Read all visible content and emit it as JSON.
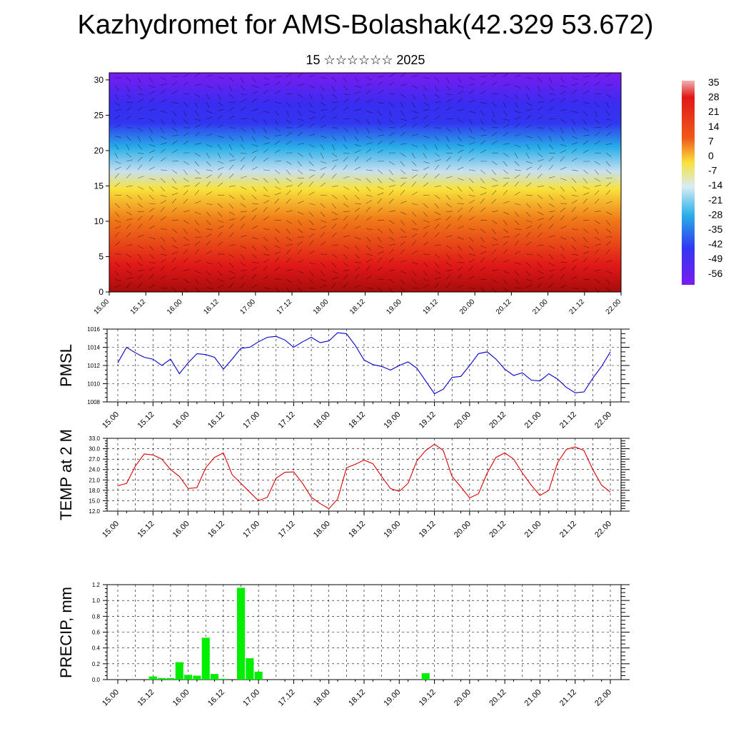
{
  "title": "Kazhydromet for AMS-Bolashak(42.329 53.672)",
  "subtitle": "15 ☆☆☆☆☆☆ 2025",
  "chart_data": [
    {
      "type": "heatmap",
      "panel": "cross-section",
      "xlabel": "",
      "ylabel": "",
      "x_ticks": [
        "15.00",
        "15.12",
        "16.00",
        "16.12",
        "17.00",
        "17.12",
        "18.00",
        "18.12",
        "19.00",
        "19.12",
        "20.00",
        "20.12",
        "21.00",
        "21.12",
        "22.00"
      ],
      "ylim": [
        0,
        31
      ],
      "y_ticks": [
        0,
        5,
        10,
        15,
        20,
        25,
        30
      ],
      "colorbar_labels": [
        "35",
        "28",
        "21",
        "14",
        "7",
        "0",
        "-7",
        "-14",
        "-21",
        "-28",
        "-35",
        "-42",
        "-49",
        "-56"
      ],
      "colorbar_range": [
        -60,
        38
      ],
      "colors": {
        "cold": "#7a1cf0",
        "blue": "#3236f0",
        "cyan": "#28aee8",
        "yellow": "#f8e23c",
        "orange": "#f07a18",
        "red": "#e01818",
        "darkred": "#a80c0c"
      },
      "overlay": "wind barbs"
    },
    {
      "type": "line",
      "ylabel": "PMSL",
      "color": "#0000cc",
      "ylim": [
        1008,
        1016
      ],
      "y_ticks": [
        "1008",
        "1010",
        "1012",
        "1014",
        "1016"
      ],
      "x_ticks": [
        "15.00",
        "15.12",
        "16.00",
        "16.12",
        "17.00",
        "17.12",
        "18.00",
        "18.12",
        "19.00",
        "19.12",
        "20.00",
        "20.12",
        "21.00",
        "21.12",
        "22.00"
      ],
      "x": [
        0,
        3,
        6,
        9,
        12,
        15,
        18,
        21,
        24,
        27,
        30,
        33,
        36,
        39,
        42,
        45,
        48,
        51,
        54,
        57,
        60,
        63,
        66,
        69,
        72,
        75,
        78,
        81,
        84,
        87,
        90,
        93,
        96,
        99,
        102,
        105,
        108,
        111,
        114,
        117,
        120,
        123,
        126,
        129,
        132,
        135,
        138,
        141,
        144,
        147,
        150,
        153,
        156,
        159,
        162,
        165,
        168
      ],
      "values": [
        1012.3,
        1014.0,
        1013.4,
        1012.9,
        1012.7,
        1012.0,
        1012.7,
        1011.1,
        1012.3,
        1013.3,
        1013.2,
        1012.9,
        1011.6,
        1012.7,
        1013.9,
        1014.0,
        1014.6,
        1015.1,
        1015.2,
        1014.8,
        1014.0,
        1014.6,
        1015.1,
        1014.5,
        1014.7,
        1015.6,
        1015.5,
        1014.2,
        1012.6,
        1012.1,
        1011.9,
        1011.5,
        1012.0,
        1012.4,
        1011.7,
        1010.3,
        1008.9,
        1009.4,
        1010.7,
        1010.8,
        1012.0,
        1013.3,
        1013.5,
        1012.7,
        1011.6,
        1010.9,
        1011.2,
        1010.4,
        1010.3,
        1011.1,
        1010.5,
        1009.6,
        1009.0,
        1009.1,
        1010.6,
        1011.9,
        1013.5
      ]
    },
    {
      "type": "line",
      "ylabel": "TEMP at 2 M",
      "color": "#dd0000",
      "ylim": [
        12,
        33
      ],
      "y_ticks": [
        "12.0",
        "15.0",
        "18.0",
        "21.0",
        "24.0",
        "27.0",
        "30.0",
        "33.0"
      ],
      "x_ticks": [
        "15.00",
        "15.12",
        "16.00",
        "16.12",
        "17.00",
        "17.12",
        "18.00",
        "18.12",
        "19.00",
        "19.12",
        "20.00",
        "20.12",
        "21.00",
        "21.12",
        "22.00"
      ],
      "x": [
        0,
        3,
        6,
        9,
        12,
        15,
        18,
        21,
        24,
        27,
        30,
        33,
        36,
        39,
        42,
        45,
        48,
        51,
        54,
        57,
        60,
        63,
        66,
        69,
        72,
        75,
        78,
        81,
        84,
        87,
        90,
        93,
        96,
        99,
        102,
        105,
        108,
        111,
        114,
        117,
        120,
        123,
        126,
        129,
        132,
        135,
        138,
        141,
        144,
        147,
        150,
        153,
        156,
        159,
        162,
        165,
        168
      ],
      "values": [
        19.3,
        20.0,
        25.0,
        28.5,
        28.2,
        27.0,
        24.0,
        22.0,
        18.5,
        18.8,
        24.5,
        27.5,
        28.8,
        22.5,
        20.0,
        17.5,
        15.0,
        16.0,
        21.5,
        23.2,
        23.3,
        20.0,
        16.0,
        14.2,
        12.7,
        15.5,
        24.5,
        25.5,
        26.7,
        25.7,
        22.0,
        18.5,
        17.7,
        20.0,
        26.5,
        29.5,
        31.3,
        29.5,
        22.0,
        19.0,
        15.8,
        17.0,
        23.0,
        27.5,
        28.8,
        27.0,
        23.0,
        19.5,
        16.5,
        18.0,
        26.0,
        29.8,
        30.5,
        29.5,
        24.0,
        19.5,
        17.5
      ]
    },
    {
      "type": "bar",
      "ylabel": "PRECIP, mm",
      "color": "#00ee00",
      "ylim": [
        0,
        1.2
      ],
      "y_ticks": [
        "0.0",
        "0.2",
        "0.4",
        "0.6",
        "0.8",
        "1.0",
        "1.2"
      ],
      "x_ticks": [
        "15.00",
        "15.12",
        "16.00",
        "16.12",
        "17.00",
        "17.12",
        "18.00",
        "18.12",
        "19.00",
        "19.12",
        "20.00",
        "20.12",
        "21.00",
        "21.12",
        "22.00"
      ],
      "x": [
        12,
        15,
        18,
        21,
        24,
        27,
        30,
        33,
        36,
        39,
        42,
        45,
        105
      ],
      "values": [
        0.04,
        0.02,
        0.02,
        0.22,
        0.06,
        0.05,
        0.53,
        0.07,
        0.01,
        0.0,
        1.16,
        0.27,
        0.08
      ],
      "extra_bar": {
        "x": 48,
        "value": 0.1
      }
    }
  ]
}
